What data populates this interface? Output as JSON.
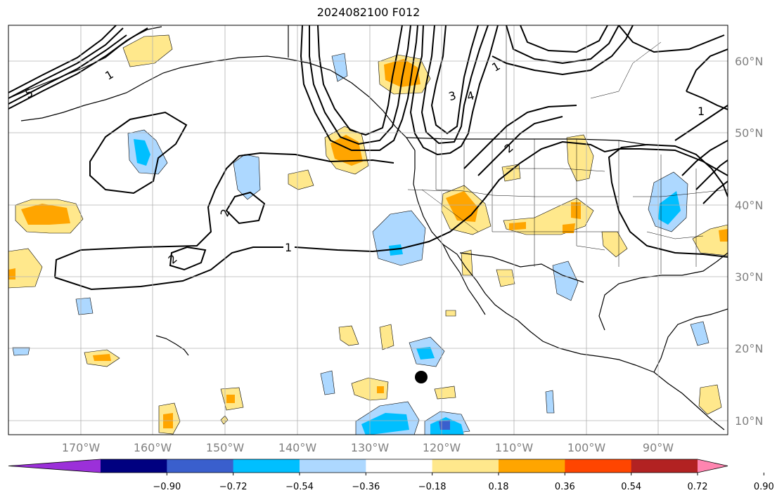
{
  "title": "2024082100 F012",
  "lat_labels": [
    "60°N",
    "50°N",
    "40°N",
    "30°N",
    "20°N",
    "10°N"
  ],
  "lon_labels": [
    "170°W",
    "160°W",
    "150°W",
    "140°W",
    "130°W",
    "120°W",
    "110°W",
    "100°W",
    "90°W"
  ],
  "contour_labels": [
    "1",
    "1",
    "2",
    "2",
    "2",
    "3",
    "4",
    "5",
    "1",
    "1"
  ],
  "colorbar": {
    "colors": [
      "#9b30d9",
      "#000080",
      "#3a5fcd",
      "#00bfff",
      "#add8ff",
      "#ffffff",
      "#ffe88c",
      "#ffa500",
      "#ff4500",
      "#b22222",
      "#ff85b0"
    ],
    "tick_labels": [
      "−0.90",
      "−0.72",
      "−0.54",
      "−0.36",
      "−0.18",
      "0.18",
      "0.36",
      "0.54",
      "0.72",
      "0.90"
    ]
  }
}
